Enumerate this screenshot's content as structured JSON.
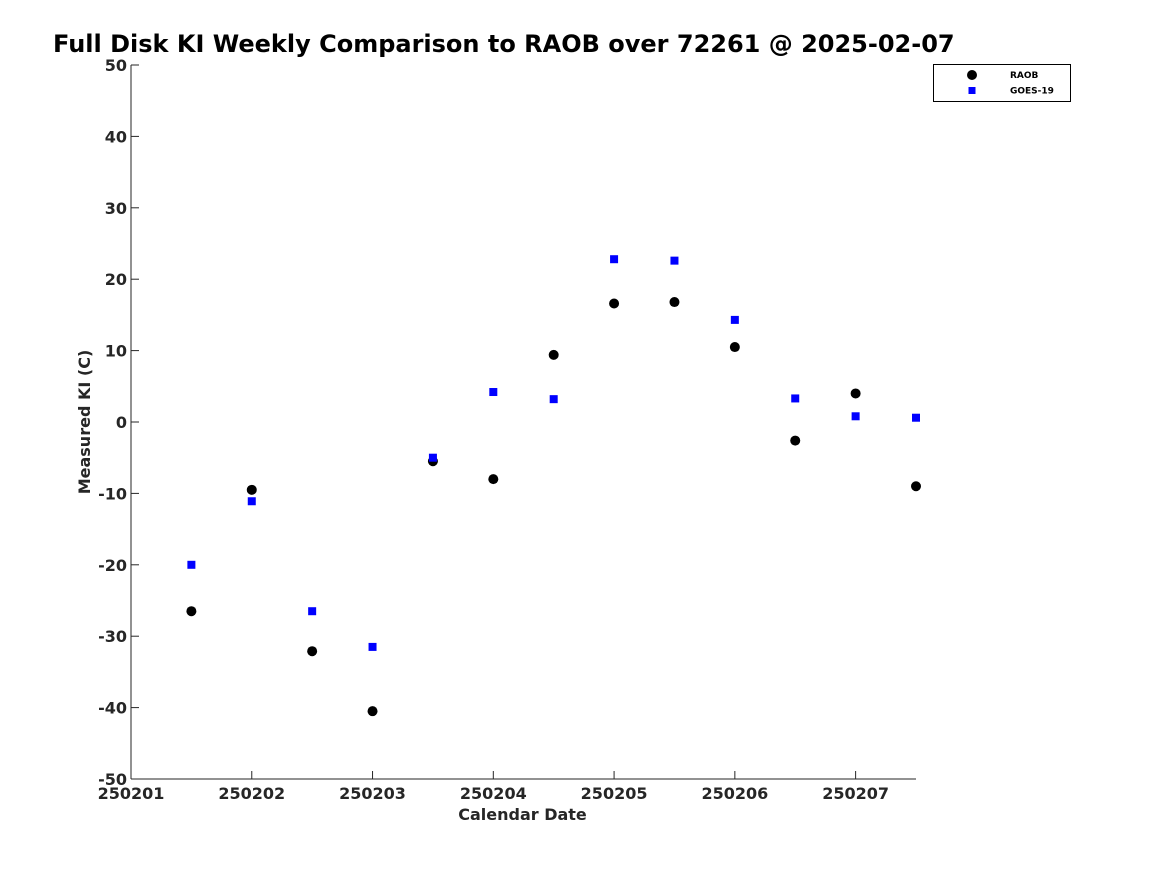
{
  "chart_data": {
    "type": "scatter",
    "title": "Full Disk KI Weekly Comparison to RAOB over 72261 @ 2025-02-07",
    "xlabel": "Calendar Date",
    "ylabel": "Measured KI (C)",
    "xlim": [
      0,
      6.5
    ],
    "ylim": [
      -50,
      50
    ],
    "x_ticks": [
      {
        "value": 0,
        "label": "250201"
      },
      {
        "value": 1,
        "label": "250202"
      },
      {
        "value": 2,
        "label": "250203"
      },
      {
        "value": 3,
        "label": "250204"
      },
      {
        "value": 4,
        "label": "250205"
      },
      {
        "value": 5,
        "label": "250206"
      },
      {
        "value": 6,
        "label": "250207"
      }
    ],
    "y_ticks": [
      {
        "value": 50,
        "label": "50"
      },
      {
        "value": 40,
        "label": "40"
      },
      {
        "value": 30,
        "label": "30"
      },
      {
        "value": 20,
        "label": "20"
      },
      {
        "value": 10,
        "label": "10"
      },
      {
        "value": 0,
        "label": "0"
      },
      {
        "value": -10,
        "label": "-10"
      },
      {
        "value": -20,
        "label": "-20"
      },
      {
        "value": -30,
        "label": "-30"
      },
      {
        "value": -40,
        "label": "-40"
      },
      {
        "value": -50,
        "label": "-50"
      }
    ],
    "grid": false,
    "legend_position": "top-right",
    "x": [
      0.5,
      1,
      1.5,
      2,
      2.5,
      3,
      3.5,
      4,
      4.5,
      5,
      5.5,
      6,
      6.5
    ],
    "series": [
      {
        "name": "RAOB",
        "marker": "circle",
        "color": "#000000",
        "values": [
          -26.5,
          -9.5,
          -32.1,
          -40.5,
          -5.5,
          -8,
          9.4,
          16.6,
          16.8,
          10.5,
          -2.6,
          4,
          -9
        ]
      },
      {
        "name": "GOES-19",
        "marker": "square",
        "color": "#0000ff",
        "values": [
          -20,
          -11.1,
          -26.5,
          -31.5,
          -5,
          4.2,
          3.2,
          22.8,
          22.6,
          14.3,
          3.3,
          0.8,
          0.6
        ]
      }
    ]
  }
}
